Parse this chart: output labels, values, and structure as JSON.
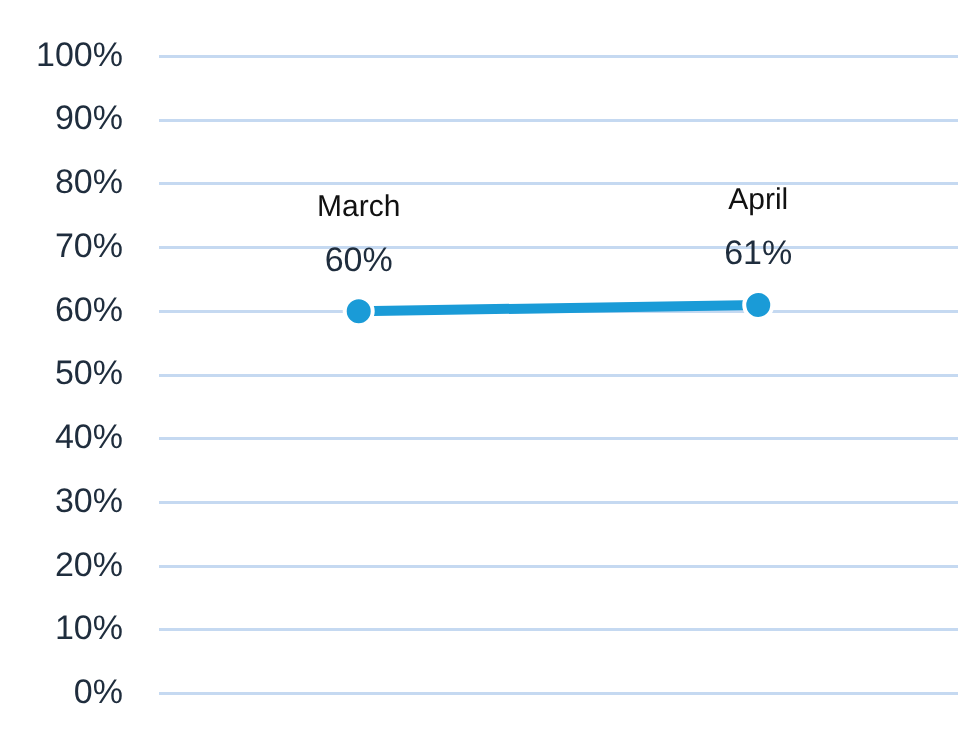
{
  "chart_data": {
    "type": "line",
    "categories": [
      "March",
      "April"
    ],
    "series": [
      {
        "color": "#1a9bd7",
        "values": [
          60,
          61
        ],
        "value_labels": [
          "60%",
          "61%"
        ]
      }
    ],
    "ylim": [
      0,
      100
    ],
    "yticks": [
      {
        "value": 0,
        "label": "0%"
      },
      {
        "value": 10,
        "label": "10%"
      },
      {
        "value": 20,
        "label": "20%"
      },
      {
        "value": 30,
        "label": "30%"
      },
      {
        "value": 40,
        "label": "40%"
      },
      {
        "value": 50,
        "label": "50%"
      },
      {
        "value": 60,
        "label": "60%"
      },
      {
        "value": 70,
        "label": "70%"
      },
      {
        "value": 80,
        "label": "80%"
      },
      {
        "value": 90,
        "label": "90%"
      },
      {
        "value": 100,
        "label": "100%"
      }
    ],
    "grid": "y",
    "legend": false,
    "marker": "circle",
    "line_style": "solid",
    "tick_labels": "y"
  }
}
